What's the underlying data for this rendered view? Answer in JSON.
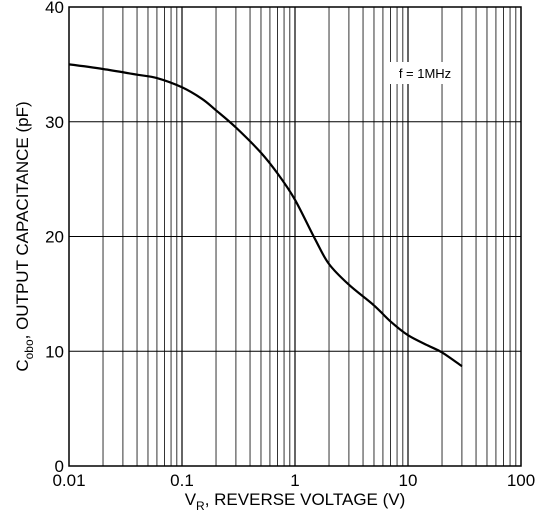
{
  "chart_data": {
    "type": "line",
    "xscale": "log",
    "xlim": [
      0.01,
      100
    ],
    "ylim": [
      0,
      40
    ],
    "x_ticks": [
      "0.01",
      "0.1",
      "1",
      "10",
      "100"
    ],
    "y_ticks": [
      "0",
      "10",
      "20",
      "30",
      "40"
    ],
    "grid": true,
    "xlabel_main": "V",
    "xlabel_sub": "R",
    "xlabel_rest": ", REVERSE VOLTAGE (V)",
    "ylabel_main": "C",
    "ylabel_sub": "obo",
    "ylabel_rest": ", OUTPUT CAPACITANCE (pF)",
    "annotation": "f = 1MHz",
    "series": [
      {
        "x": [
          0.01,
          0.02,
          0.04,
          0.06,
          0.1,
          0.15,
          0.2,
          0.3,
          0.5,
          0.7,
          1.0,
          1.5,
          2.0,
          3.0,
          5.0,
          7.0,
          10.0,
          15.0,
          20.0,
          30.0
        ],
        "y": [
          35.0,
          34.6,
          34.1,
          33.8,
          33.0,
          32.0,
          31.0,
          29.5,
          27.3,
          25.5,
          23.2,
          19.8,
          17.6,
          15.8,
          14.0,
          12.6,
          11.4,
          10.5,
          9.9,
          8.7
        ]
      }
    ]
  }
}
